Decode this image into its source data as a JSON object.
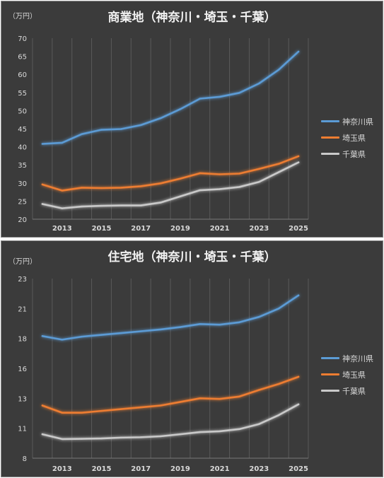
{
  "chart_data": [
    {
      "type": "line",
      "title": "商業地（神奈川・埼玉・千葉）",
      "unit_label": "（万円）",
      "xlabel": "",
      "ylabel": "",
      "x": [
        2012,
        2013,
        2014,
        2015,
        2016,
        2017,
        2018,
        2019,
        2020,
        2021,
        2022,
        2023,
        2024,
        2025
      ],
      "x_tick_labels": [
        "2013",
        "2015",
        "2017",
        "2019",
        "2021",
        "2023",
        "2025"
      ],
      "x_tick_values": [
        2013,
        2015,
        2017,
        2019,
        2021,
        2023,
        2025
      ],
      "y_ticks": [
        20,
        25,
        30,
        35,
        40,
        45,
        50,
        55,
        60,
        65,
        70
      ],
      "y_tick_labels": [
        "20",
        "25",
        "30",
        "35",
        "40",
        "45",
        "50",
        "55",
        "60",
        "65",
        "70"
      ],
      "ylim": [
        20,
        70
      ],
      "grid": "vertical",
      "legend_position": "right",
      "series": [
        {
          "name": "神奈川県",
          "color": "#5b9bd5",
          "values": [
            40.8,
            41.1,
            43.5,
            44.7,
            44.9,
            46.0,
            47.9,
            50.4,
            53.3,
            53.8,
            54.9,
            57.5,
            61.3,
            66.3
          ]
        },
        {
          "name": "埼玉県",
          "color": "#ed7d31",
          "values": [
            29.6,
            27.9,
            28.7,
            28.6,
            28.7,
            29.1,
            29.9,
            31.2,
            32.7,
            32.4,
            32.6,
            33.9,
            35.3,
            37.4
          ]
        },
        {
          "name": "千葉県",
          "color": "#c9c9c9",
          "values": [
            24.2,
            23.0,
            23.5,
            23.7,
            23.8,
            23.8,
            24.6,
            26.3,
            28.0,
            28.3,
            28.9,
            30.3,
            33.0,
            35.7
          ]
        }
      ]
    },
    {
      "type": "line",
      "title": "住宅地（神奈川・埼玉・千葉）",
      "unit_label": "（万円）",
      "xlabel": "",
      "ylabel": "",
      "x": [
        2012,
        2013,
        2014,
        2015,
        2016,
        2017,
        2018,
        2019,
        2020,
        2021,
        2022,
        2023,
        2024,
        2025
      ],
      "x_tick_labels": [
        "2013",
        "2015",
        "2017",
        "2019",
        "2021",
        "2023",
        "2025"
      ],
      "x_tick_values": [
        2013,
        2015,
        2017,
        2019,
        2021,
        2023,
        2025
      ],
      "y_ticks": [
        8,
        10.5,
        13,
        15.5,
        18,
        20.5,
        23
      ],
      "y_tick_labels": [
        "8",
        "11",
        "13",
        "16",
        "18",
        "21",
        "23"
      ],
      "ylim": [
        8,
        23
      ],
      "grid": "vertical",
      "legend_position": "right",
      "series": [
        {
          "name": "神奈川県",
          "color": "#5b9bd5",
          "values": [
            18.2,
            17.9,
            18.15,
            18.3,
            18.45,
            18.6,
            18.75,
            18.95,
            19.2,
            19.15,
            19.35,
            19.8,
            20.5,
            21.6
          ]
        },
        {
          "name": "埼玉県",
          "color": "#ed7d31",
          "values": [
            12.4,
            11.8,
            11.8,
            11.95,
            12.1,
            12.25,
            12.4,
            12.7,
            13.0,
            12.95,
            13.15,
            13.7,
            14.2,
            14.8
          ]
        },
        {
          "name": "千葉県",
          "color": "#c9c9c9",
          "values": [
            10.0,
            9.6,
            9.62,
            9.65,
            9.72,
            9.75,
            9.83,
            10.0,
            10.18,
            10.25,
            10.43,
            10.85,
            11.6,
            12.5
          ]
        }
      ]
    }
  ]
}
